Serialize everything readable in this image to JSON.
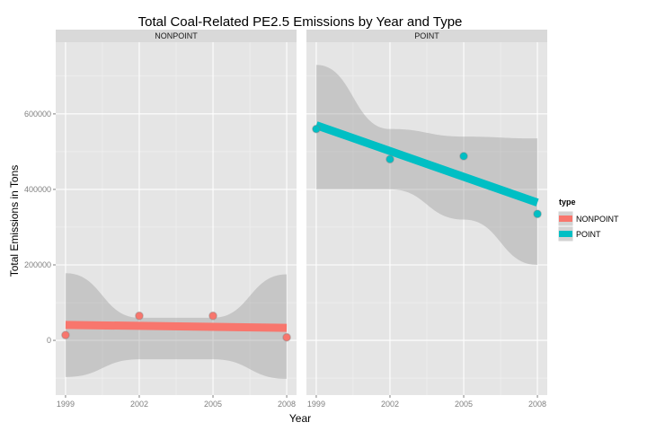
{
  "chart_data": {
    "type": "scatter",
    "title": "Total Coal-Related PE2.5 Emissions by Year and Type",
    "xlabel": "Year",
    "ylabel": "Total Emissions in Tons",
    "x_ticks": [
      "1999",
      "2002",
      "2005",
      "2008"
    ],
    "y_ticks": [
      "0",
      "200000",
      "400000",
      "600000"
    ],
    "xlim": [
      1998.6,
      2008.4
    ],
    "ylim": [
      -145000,
      790000
    ],
    "grid": true,
    "facet_by": "type",
    "legend": {
      "title": "type",
      "placement": "right"
    },
    "series": [
      {
        "name": "NONPOINT",
        "color": "#F8766D",
        "x": [
          1999,
          2002,
          2005,
          2008
        ],
        "y": [
          14000,
          65000,
          65000,
          8000
        ],
        "fit": {
          "start": [
            1999,
            41000
          ],
          "end": [
            2008,
            33000
          ]
        },
        "band_upper": [
          178000,
          60000,
          60000,
          175000
        ],
        "band_lower": [
          -97000,
          -50000,
          -50000,
          -102000
        ]
      },
      {
        "name": "POINT",
        "color": "#00BFC4",
        "x": [
          1999,
          2002,
          2005,
          2008
        ],
        "y": [
          560000,
          480000,
          488000,
          335000
        ],
        "fit": {
          "start": [
            1999,
            570000
          ],
          "end": [
            2008,
            365000
          ]
        },
        "band_upper": [
          730000,
          560000,
          540000,
          535000
        ],
        "band_lower": [
          400000,
          400000,
          320000,
          200000
        ]
      }
    ]
  }
}
